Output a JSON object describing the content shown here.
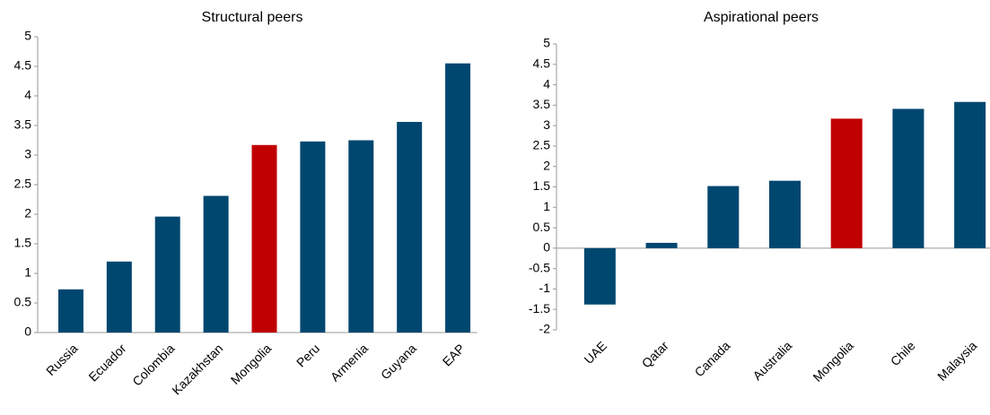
{
  "chart_data": [
    {
      "type": "bar",
      "title": "Structural peers",
      "categories": [
        "Russia",
        "Ecuador",
        "Colombia",
        "Kazakhstan",
        "Mongolia",
        "Peru",
        "Armenia",
        "Guyana",
        "EAP"
      ],
      "values": [
        0.73,
        1.2,
        1.96,
        2.31,
        3.17,
        3.23,
        3.25,
        3.56,
        4.55
      ],
      "colors": [
        "#004770",
        "#004770",
        "#004770",
        "#004770",
        "#c00000",
        "#004770",
        "#004770",
        "#004770",
        "#004770"
      ],
      "ylim": [
        0,
        5
      ],
      "yticks": [
        0,
        0.5,
        1,
        1.5,
        2,
        2.5,
        3,
        3.5,
        4,
        4.5,
        5
      ],
      "grid": false
    },
    {
      "type": "bar",
      "title": "Aspirational peers",
      "categories": [
        "UAE",
        "Qatar",
        "Canada",
        "Australia",
        "Mongolia",
        "Chile",
        "Malaysia"
      ],
      "values": [
        -1.38,
        0.13,
        1.52,
        1.65,
        3.17,
        3.41,
        3.58
      ],
      "colors": [
        "#004770",
        "#004770",
        "#004770",
        "#004770",
        "#c00000",
        "#004770",
        "#004770"
      ],
      "ylim": [
        -2,
        5
      ],
      "yticks": [
        -2,
        -1.5,
        -1,
        -0.5,
        0,
        0.5,
        1,
        1.5,
        2,
        2.5,
        3,
        3.5,
        4,
        4.5,
        5
      ],
      "grid": false
    }
  ]
}
